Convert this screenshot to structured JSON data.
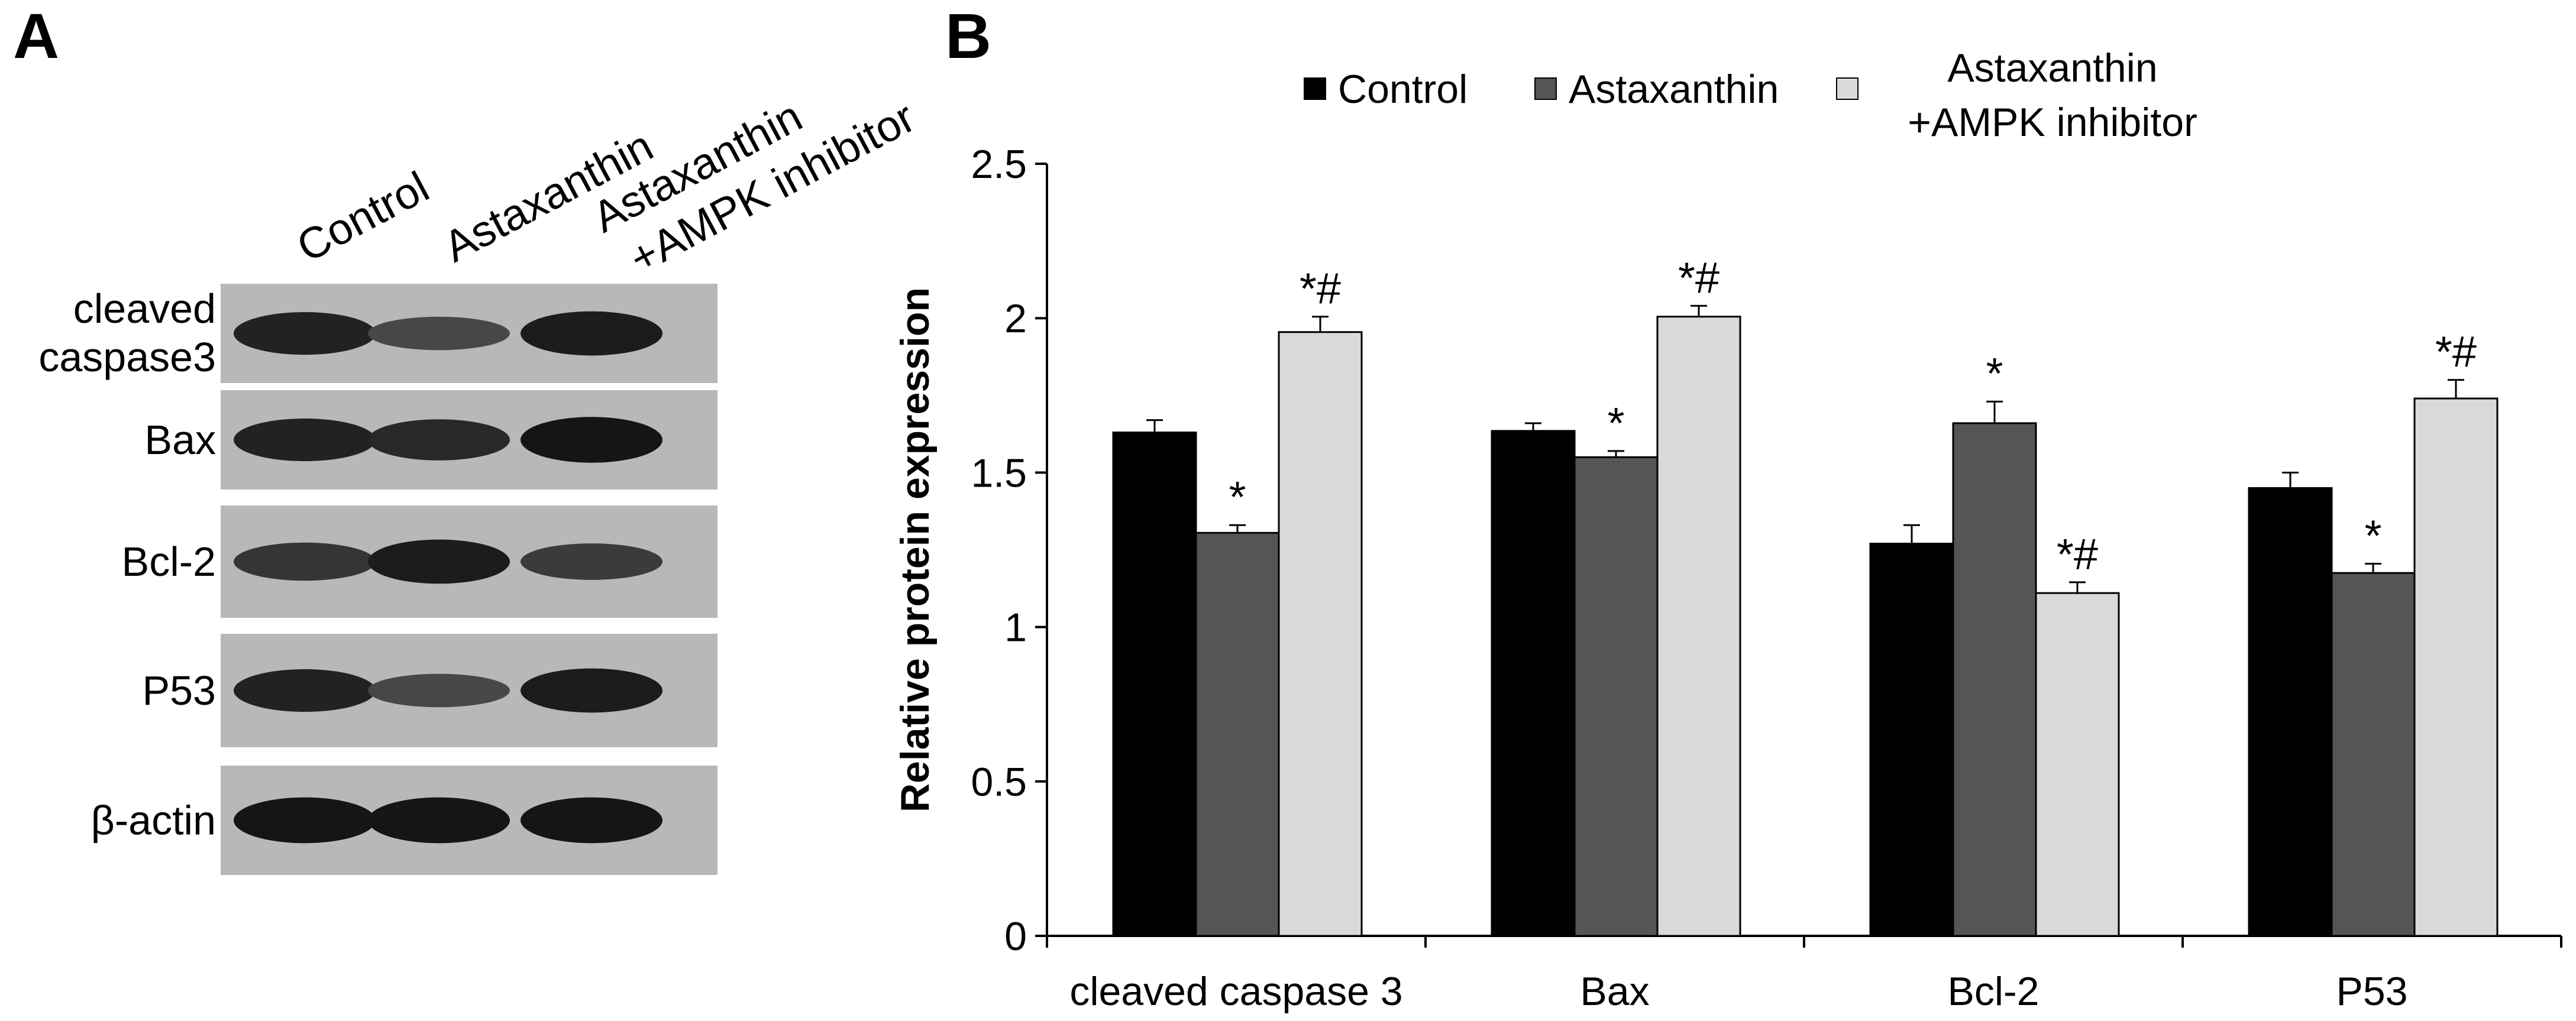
{
  "panel_a": {
    "label": "A",
    "columns": [
      "Control",
      "Astaxanthin",
      "Astaxanthin",
      "+AMPK inhibitor"
    ],
    "blots": [
      {
        "label_lines": [
          "cleaved",
          "caspase3"
        ],
        "intensities": [
          0.85,
          0.55,
          0.9
        ]
      },
      {
        "label_lines": [
          "Bax"
        ],
        "intensities": [
          0.85,
          0.8,
          0.95
        ]
      },
      {
        "label_lines": [
          "Bcl-2"
        ],
        "intensities": [
          0.7,
          0.9,
          0.65
        ]
      },
      {
        "label_lines": [
          "P53"
        ],
        "intensities": [
          0.85,
          0.55,
          0.9
        ]
      },
      {
        "label_lines": [
          "β-actin"
        ],
        "intensities": [
          0.95,
          0.95,
          0.95
        ]
      }
    ]
  },
  "panel_b": {
    "label": "B"
  },
  "chart_data": {
    "type": "bar",
    "categories": [
      "cleaved caspase 3",
      "Bax",
      "Bcl-2",
      "P53"
    ],
    "series": [
      {
        "name": "Control",
        "color": "#000000",
        "values": [
          1.63,
          1.635,
          1.27,
          1.45
        ],
        "errors": [
          0.04,
          0.025,
          0.06,
          0.05
        ],
        "annotations": [
          "",
          "",
          "",
          ""
        ]
      },
      {
        "name": "Astaxanthin",
        "color": "#555555",
        "values": [
          1.305,
          1.55,
          1.66,
          1.175
        ],
        "errors": [
          0.025,
          0.02,
          0.07,
          0.03
        ],
        "annotations": [
          "*",
          "*",
          "*",
          "*"
        ]
      },
      {
        "name": "Astaxanthin\n+AMPK inhibitor",
        "color": "#d9d9d9",
        "values": [
          1.955,
          2.005,
          1.11,
          1.74
        ],
        "errors": [
          0.05,
          0.035,
          0.035,
          0.06
        ],
        "annotations": [
          "*#",
          "*#",
          "*#",
          "*#"
        ]
      }
    ],
    "legend": {
      "position": "top",
      "entries": [
        "Control",
        "Astaxanthin"
      ],
      "entry3_lines": [
        "Astaxanthin",
        "+AMPK inhibitor"
      ]
    },
    "ylabel": "Relative protein expression",
    "xlabel": "",
    "ylim": [
      0,
      2.5
    ],
    "yticks": [
      "0",
      "0.5",
      "1",
      "1.5",
      "2",
      "2.5"
    ],
    "ytick_values": [
      0,
      0.5,
      1,
      1.5,
      2,
      2.5
    ],
    "grid": false
  }
}
